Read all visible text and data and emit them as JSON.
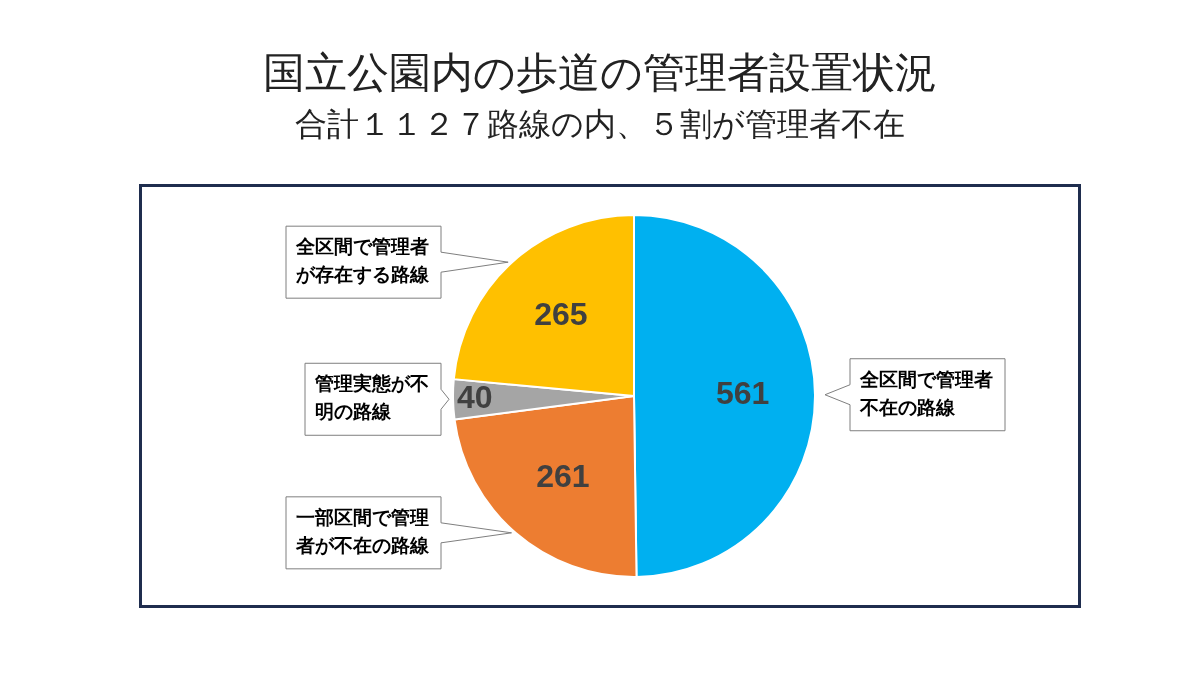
{
  "chart_data": {
    "type": "pie",
    "title": "国立公園内の歩道の管理者設置状況",
    "subtitle": "合計１１２７路線の内、５割が管理者不在",
    "categories": [
      "全区間で管理者不在の路線",
      "一部区間で管理者が不在の路線",
      "管理実態が不明の路線",
      "全区間で管理者が存在する路線"
    ],
    "values": [
      561,
      261,
      40,
      265
    ],
    "colors": [
      "#00b0f0",
      "#ed7d31",
      "#a5a5a5",
      "#ffc000"
    ],
    "data_labels": true,
    "legend": false
  }
}
